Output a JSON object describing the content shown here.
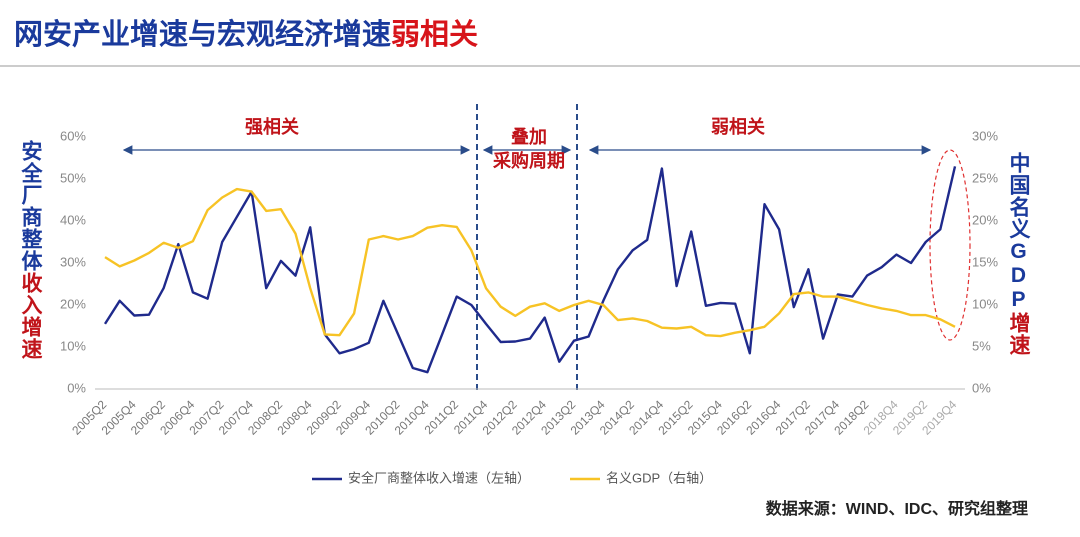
{
  "chart_data": {
    "type": "line",
    "title": "网安产业增速与宏观经济增速",
    "title_highlight": "弱相关",
    "y_label": {
      "part1": "安全厂商整体",
      "part2": "收入增速"
    },
    "y2_label": {
      "part1": "中国名义GDP",
      "part2": "增速"
    },
    "annotations": [
      "强相关",
      "叠加",
      "采购周期",
      "弱相关"
    ],
    "source": "数据来源：WIND、IDC、研究组整理",
    "categories": [
      "2005Q2",
      null,
      "2005Q4",
      null,
      "2006Q2",
      null,
      "2006Q4",
      null,
      "2007Q2",
      null,
      "2007Q4",
      null,
      "2008Q2",
      null,
      "2008Q4",
      null,
      "2009Q2",
      null,
      "2009Q4",
      null,
      "2010Q2",
      null,
      "2010Q4",
      null,
      "2011Q2",
      null,
      "2011Q4",
      null,
      "2012Q2",
      null,
      "2012Q4",
      null,
      "2013Q2",
      null,
      "2013Q4",
      null,
      "2014Q2",
      null,
      "2014Q4",
      null,
      "2015Q2",
      null,
      "2015Q4",
      null,
      "2016Q2",
      null,
      "2016Q4",
      null,
      "2017Q2",
      null,
      "2017Q4",
      null,
      "2018Q2",
      null,
      "2018Q4",
      null,
      "2019Q2",
      null,
      "2019Q4"
    ],
    "series": [
      {
        "name": "安全厂商整体收入增速（左轴）",
        "color": "#1f2a8c",
        "axis": "y",
        "values": [
          15.5,
          21,
          17.5,
          17.7,
          24,
          34.5,
          23,
          21.5,
          35,
          41,
          47,
          24,
          30.5,
          27,
          38.5,
          13,
          8.5,
          9.5,
          11,
          21,
          13,
          5,
          4,
          13,
          22,
          20,
          15.5,
          11.2,
          11.3,
          12,
          17,
          6.5,
          11.5,
          12.5,
          21,
          28.5,
          33,
          35.5,
          52.5,
          24.5,
          37.5,
          19.8,
          20.5,
          20.3,
          8.5,
          44,
          38,
          19.5,
          28.5,
          12,
          22.5,
          22,
          27,
          29,
          32,
          30,
          35,
          38,
          53
        ]
      },
      {
        "name": "名义GDP（右轴）",
        "color": "#f7c325",
        "axis": "y2",
        "values": [
          15.7,
          14.6,
          15.3,
          16.2,
          17.4,
          16.8,
          17.6,
          21.3,
          22.8,
          23.8,
          23.5,
          21.2,
          21.4,
          18.5,
          12,
          6.5,
          6.4,
          9,
          17.8,
          18.2,
          17.8,
          18.2,
          19.2,
          19.5,
          19.3,
          16.5,
          12,
          9.8,
          8.7,
          9.8,
          10.2,
          9.3,
          10,
          10.5,
          10,
          8.2,
          8.4,
          8.1,
          7.3,
          7.2,
          7.4,
          6.4,
          6.3,
          6.7,
          7,
          7.4,
          9,
          11.3,
          11.5,
          11,
          11,
          10.5,
          10,
          9.6,
          9.3,
          8.8,
          8.8,
          8.3,
          7.4
        ]
      }
    ],
    "ylim": [
      0,
      60
    ],
    "yticks": [
      {
        "value": 0,
        "label": "0%"
      },
      {
        "value": 10,
        "label": "10%"
      },
      {
        "value": 20,
        "label": "20%"
      },
      {
        "value": 30,
        "label": "30%"
      },
      {
        "value": 40,
        "label": "40%"
      },
      {
        "value": 50,
        "label": "50%"
      },
      {
        "value": 60,
        "label": "60%"
      }
    ],
    "y2lim": [
      0,
      30
    ],
    "y2ticks": [
      {
        "value": 0,
        "label": "0%"
      },
      {
        "value": 5,
        "label": "5%"
      },
      {
        "value": 10,
        "label": "10%"
      },
      {
        "value": 15,
        "label": "15%"
      },
      {
        "value": 20,
        "label": "20%"
      },
      {
        "value": 25,
        "label": "25%"
      },
      {
        "value": 30,
        "label": "30%"
      }
    ],
    "grid": false,
    "legend": "bottom"
  }
}
